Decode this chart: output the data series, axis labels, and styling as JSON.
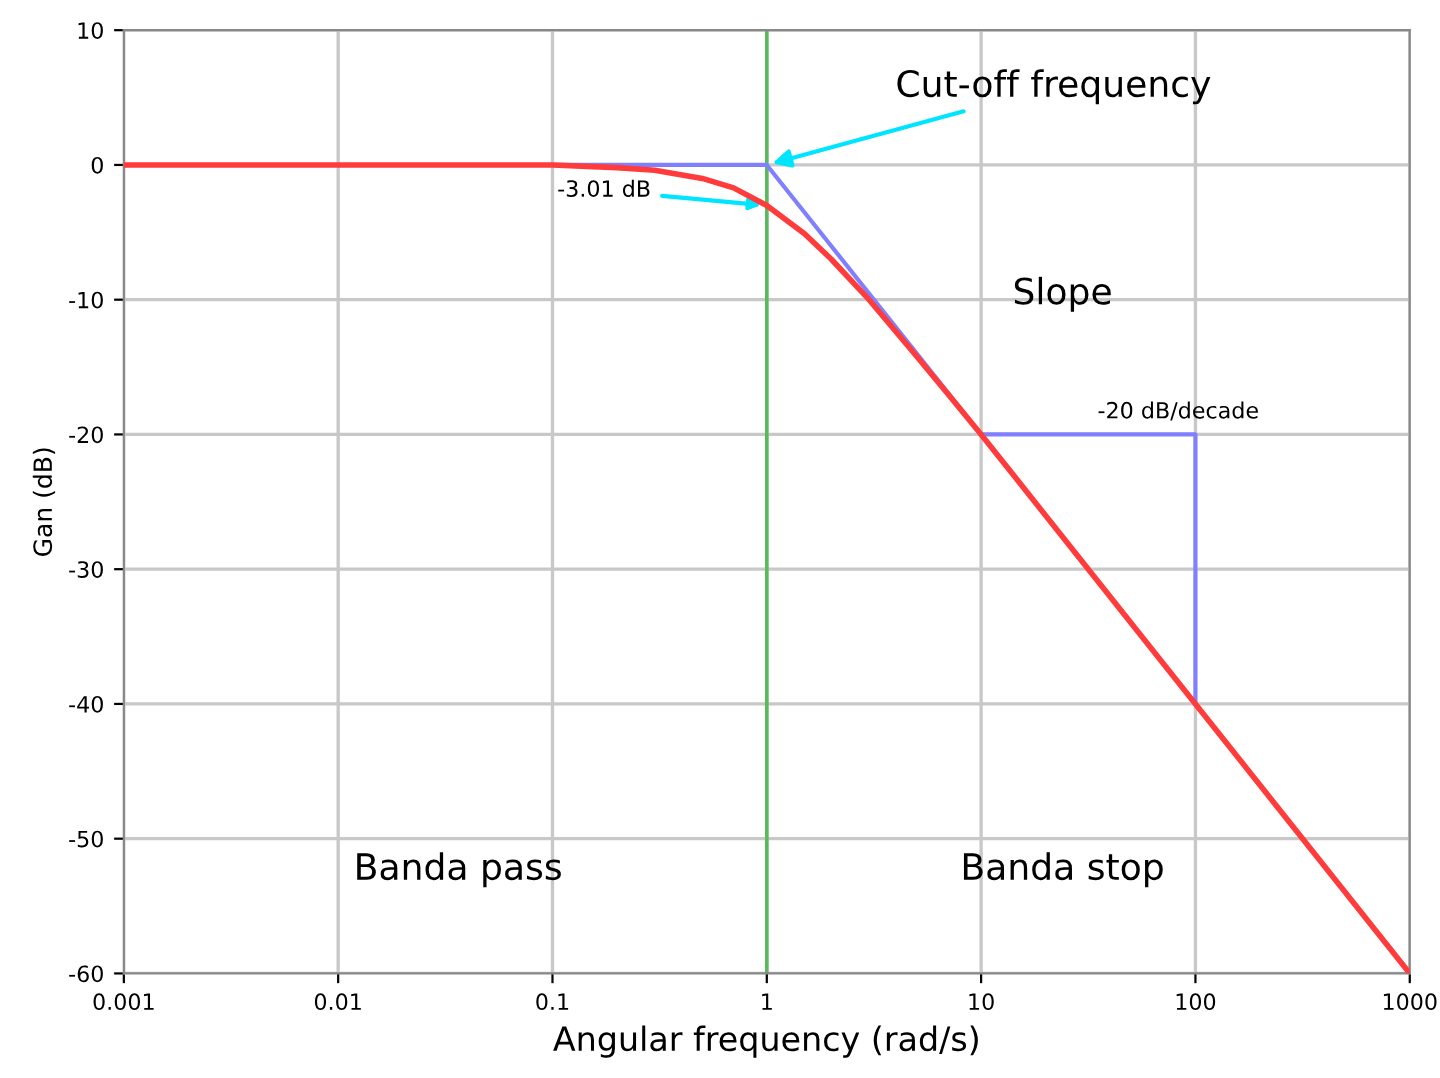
{
  "chart_data": {
    "type": "line",
    "xlabel": "Angular frequency (rad/s)",
    "ylabel": "Gan (dB)",
    "log": "x",
    "xlim": [
      0.001,
      1000
    ],
    "ylim": [
      -60,
      10
    ],
    "xticks": [
      0.001,
      0.01,
      0.1,
      1,
      10,
      100,
      1000
    ],
    "yticks": [
      -60,
      -50,
      -40,
      -30,
      -20,
      -10,
      0,
      10
    ],
    "grid": true,
    "marker": "none",
    "line_style": "solid",
    "series": [
      {
        "color": "#8080ff",
        "x": [
          0.1,
          1,
          10
        ],
        "values": [
          0,
          0,
          -20
        ]
      },
      {
        "color": "#8080ff",
        "x": [
          10,
          100,
          100
        ],
        "values": [
          -20,
          -20,
          -40
        ]
      },
      {
        "color": "#ff3b3b",
        "x": [
          0.001,
          0.01,
          0.1,
          0.2,
          0.3,
          0.5,
          0.7,
          1,
          1.5,
          2,
          3,
          5,
          7,
          10,
          100,
          1000
        ],
        "values": [
          0,
          0,
          0,
          -0.2,
          -0.4,
          -1,
          -1.7,
          -3.01,
          -5.1,
          -7,
          -10,
          -14.2,
          -17,
          -20,
          -40,
          -60
        ]
      }
    ],
    "ref_lines": [
      {
        "axis": "x",
        "value": 1,
        "color": "#5cb85c"
      }
    ],
    "annotations": [
      {
        "text": "Cut-off frequency",
        "x": 1,
        "y": 0
      },
      {
        "text": "-3.01 dB",
        "x": 1,
        "y": -3.01
      },
      "Slope",
      "-20 dB/decade",
      "Banda pass",
      "Banda stop"
    ]
  }
}
